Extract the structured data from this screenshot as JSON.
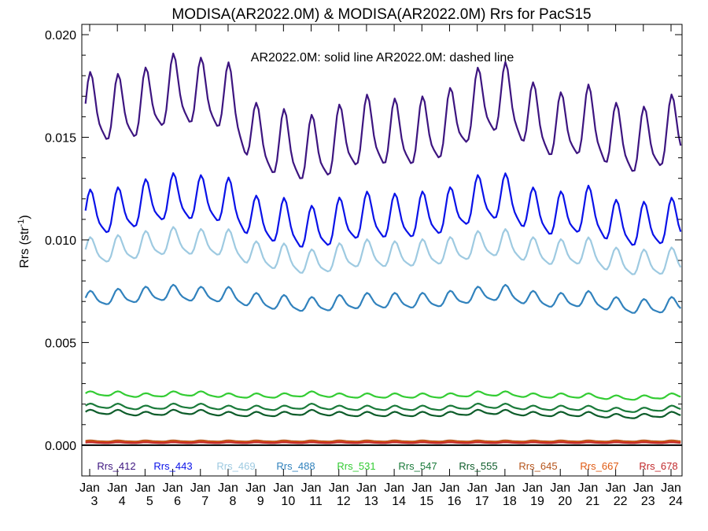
{
  "chart_data": {
    "type": "line",
    "title": "MODISA(AR2022.0M) & MODISA(AR2022.0M)  Rrs for PacS15",
    "annotation": "AR2022.0M: solid line   AR2022.0M: dashed line",
    "ylabel_main": "Rrs (str",
    "ylabel_sup": "-1",
    "ylabel_end": ")",
    "ylim": [
      -0.0015,
      0.0205
    ],
    "yticks": [
      0.0,
      0.005,
      0.01,
      0.015,
      0.02
    ],
    "ytick_labels": [
      "0.000",
      "0.005",
      "0.010",
      "0.015",
      "0.020"
    ],
    "xtick_month": "Jan",
    "xtick_years": [
      "3",
      "4",
      "5",
      "6",
      "7",
      "8",
      "9",
      "10",
      "11",
      "12",
      "13",
      "14",
      "15",
      "16",
      "17",
      "18",
      "19",
      "20",
      "21",
      "22",
      "23",
      "24"
    ],
    "grid": false,
    "series": [
      {
        "name": "Rrs_412",
        "color": "#3d1580",
        "annual_values": [
          0.0163,
          0.0162,
          0.0165,
          0.0172,
          0.017,
          0.0168,
          0.0148,
          0.0145,
          0.0142,
          0.0147,
          0.0152,
          0.015,
          0.0151,
          0.0155,
          0.0165,
          0.0168,
          0.0158,
          0.0153,
          0.0157,
          0.0148,
          0.0146,
          0.0152
        ],
        "amplitude": 0.0018
      },
      {
        "name": "Rrs_443",
        "color": "#0a12e8",
        "annual_values": [
          0.0112,
          0.0113,
          0.0117,
          0.012,
          0.0119,
          0.0118,
          0.0109,
          0.0108,
          0.0104,
          0.0108,
          0.0111,
          0.011,
          0.0111,
          0.0113,
          0.0119,
          0.012,
          0.0113,
          0.0111,
          0.0114,
          0.0107,
          0.0106,
          0.0108
        ],
        "amplitude": 0.0012
      },
      {
        "name": "Rrs_469",
        "color": "#9ecae1",
        "annual_values": [
          0.0094,
          0.0095,
          0.0097,
          0.0099,
          0.0098,
          0.0098,
          0.0092,
          0.0091,
          0.0088,
          0.0091,
          0.0093,
          0.0092,
          0.0093,
          0.0094,
          0.0097,
          0.0098,
          0.0094,
          0.0093,
          0.0094,
          0.0089,
          0.0088,
          0.0089
        ],
        "amplitude": 0.0007
      },
      {
        "name": "Rrs_488",
        "color": "#3182bd",
        "annual_values": [
          0.0071,
          0.0072,
          0.0073,
          0.0074,
          0.0073,
          0.0073,
          0.007,
          0.0069,
          0.0068,
          0.0069,
          0.007,
          0.007,
          0.007,
          0.0071,
          0.0073,
          0.0074,
          0.0071,
          0.007,
          0.0071,
          0.0068,
          0.0067,
          0.0068
        ],
        "amplitude": 0.0004
      },
      {
        "name": "Rrs_531",
        "color": "#33cc33",
        "annual_values": [
          0.0025,
          0.0025,
          0.0024,
          0.0025,
          0.0025,
          0.0024,
          0.0024,
          0.0024,
          0.0025,
          0.0024,
          0.0024,
          0.0024,
          0.0024,
          0.0024,
          0.0025,
          0.0025,
          0.0024,
          0.0024,
          0.0024,
          0.0023,
          0.0023,
          0.0024
        ],
        "amplitude": 0.00012
      },
      {
        "name": "Rrs_547",
        "color": "#1a7a3a",
        "annual_values": [
          0.0019,
          0.0019,
          0.0018,
          0.0019,
          0.0019,
          0.0018,
          0.0018,
          0.0018,
          0.0019,
          0.0018,
          0.0018,
          0.0018,
          0.0018,
          0.0018,
          0.0019,
          0.0019,
          0.0018,
          0.0018,
          0.0018,
          0.0017,
          0.0017,
          0.0018
        ],
        "amplitude": 0.00012
      },
      {
        "name": "Rrs_555",
        "color": "#0d5c2a",
        "annual_values": [
          0.0016,
          0.0016,
          0.0015,
          0.0016,
          0.0016,
          0.0015,
          0.0015,
          0.0015,
          0.0016,
          0.0015,
          0.0015,
          0.0015,
          0.0015,
          0.0015,
          0.0016,
          0.0016,
          0.0015,
          0.0015,
          0.0015,
          0.0014,
          0.0014,
          0.0015
        ],
        "amplitude": 0.00012
      },
      {
        "name": "Rrs_645",
        "color": "#b5541b",
        "annual_values": [
          0.0002,
          0.0002,
          0.0002,
          0.0002,
          0.0002,
          0.0002,
          0.0002,
          0.0002,
          0.0002,
          0.0002,
          0.0002,
          0.0002,
          0.0002,
          0.0002,
          0.0002,
          0.0002,
          0.0002,
          0.0002,
          0.0002,
          0.0002,
          0.0002,
          0.0002
        ],
        "amplitude": 3e-05
      },
      {
        "name": "Rrs_667",
        "color": "#e05a12",
        "annual_values": [
          0.00015,
          0.00015,
          0.00015,
          0.00015,
          0.00015,
          0.00015,
          0.00015,
          0.00015,
          0.00015,
          0.00015,
          0.00015,
          0.00015,
          0.00015,
          0.00015,
          0.00015,
          0.00015,
          0.00015,
          0.00015,
          0.00015,
          0.00015,
          0.00015,
          0.00015
        ],
        "amplitude": 2e-05
      },
      {
        "name": "Rrs_678",
        "color": "#c0282a",
        "annual_values": [
          0.00012,
          0.00012,
          0.00012,
          0.00012,
          0.00012,
          0.00012,
          0.00012,
          0.00012,
          0.00012,
          0.00012,
          0.00012,
          0.00012,
          0.00012,
          0.00012,
          0.00012,
          0.00012,
          0.00012,
          0.00012,
          0.00012,
          0.00012,
          0.00012,
          0.00012
        ],
        "amplitude": 2e-05
      }
    ]
  }
}
